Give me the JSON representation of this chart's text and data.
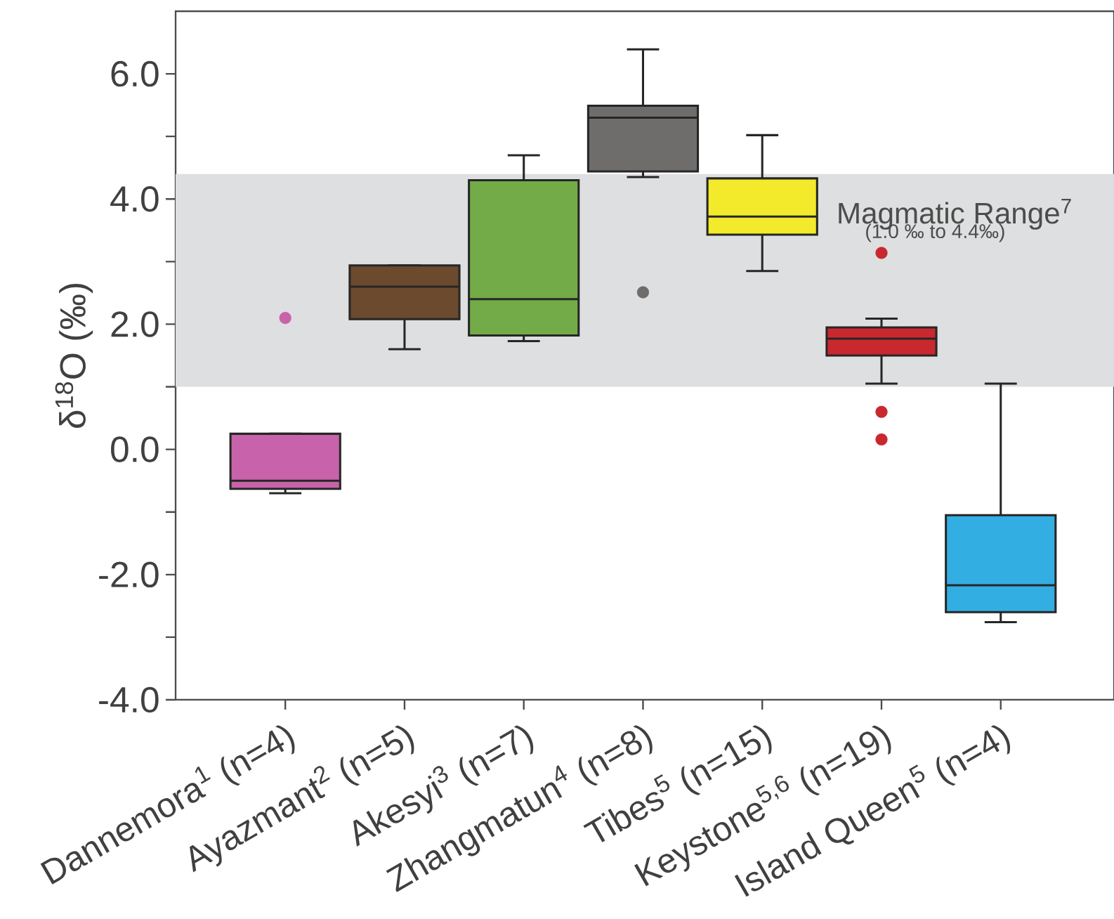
{
  "chart_data": {
    "type": "box",
    "ylabel": "δ$^{18}$O (‰)",
    "categories": [
      "Dannemora$^{1}$ (n=4)",
      "Ayazmant$^{2}$ (n=5)",
      "Akesyi$^{3}$ (n=7)",
      "Zhangmatun$^{4}$ (n=8)",
      "Tibes$^{5}$ (n=15)",
      "Keystone$^{5,6}$ (n=19)",
      "Island Queen$^{5}$ (n=4)"
    ],
    "colors": [
      "#c862aa",
      "#6b4a2e",
      "#72ab47",
      "#6e6d6c",
      "#f2ea2a",
      "#c8282e",
      "#33aee2"
    ],
    "boxes": [
      {
        "low": -0.7,
        "q1": -0.63,
        "median": -0.5,
        "q3": 0.25,
        "high": 0.25,
        "outliers": [
          2.1
        ]
      },
      {
        "low": 1.6,
        "q1": 2.08,
        "median": 2.6,
        "q3": 2.94,
        "high": 2.94
      },
      {
        "low": 1.73,
        "q1": 1.82,
        "median": 2.4,
        "q3": 4.3,
        "high": 4.7
      },
      {
        "low": 4.35,
        "q1": 4.44,
        "median": 5.3,
        "q3": 5.49,
        "high": 6.39,
        "outliers": [
          2.51
        ]
      },
      {
        "low": 2.85,
        "q1": 3.43,
        "median": 3.72,
        "q3": 4.33,
        "high": 5.02
      },
      {
        "low": 1.05,
        "q1": 1.5,
        "median": 1.77,
        "q3": 1.95,
        "high": 2.09,
        "outliers": [
          3.14,
          0.6,
          0.16
        ]
      },
      {
        "low": -2.76,
        "q1": -2.6,
        "median": -2.17,
        "q3": -1.05,
        "high": 1.05
      }
    ],
    "ylim": [
      -4,
      7
    ],
    "yticks": [
      {
        "value": -4,
        "label": "-4.0"
      },
      {
        "value": -3,
        "label": null
      },
      {
        "value": -2,
        "label": "-2.0"
      },
      {
        "value": -1,
        "label": null
      },
      {
        "value": 0,
        "label": "0.0"
      },
      {
        "value": 1,
        "label": null
      },
      {
        "value": 2,
        "label": "2.0"
      },
      {
        "value": 3,
        "label": null
      },
      {
        "value": 4,
        "label": "4.0"
      },
      {
        "value": 5,
        "label": null
      },
      {
        "value": 6,
        "label": "6.0"
      }
    ],
    "bands": [
      {
        "axis": "y",
        "from": 1.0,
        "to": 4.4,
        "label": "Magmatic Range$^{7}$",
        "color": "#dedfe0"
      }
    ],
    "annotations": [
      "(1.0 ‰ to 4.4‰)"
    ]
  }
}
